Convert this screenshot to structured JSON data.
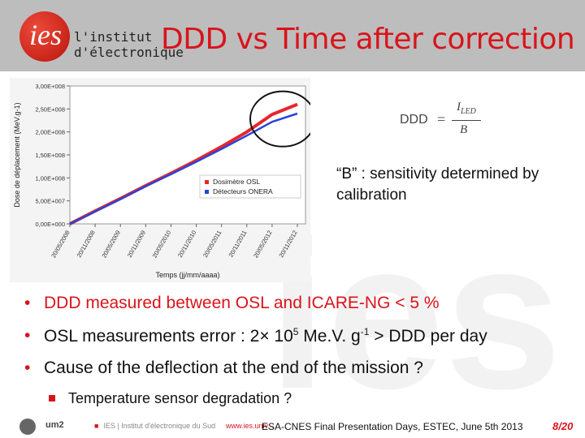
{
  "header": {
    "logo_text": "ies",
    "logo_line1": "l'institut",
    "logo_line2": "d'électronique",
    "title": "DDD vs Time after correction"
  },
  "watermark": {
    "text": "ies"
  },
  "chart_data": {
    "type": "line",
    "ylabel": "Dose de déplacement (MeV.g-1)",
    "xlabel": "Temps (jj/mm/aaaa)",
    "y_ticks": [
      "0,00E+000",
      "5,00E+007",
      "1,00E+008",
      "1,50E+008",
      "2,00E+008",
      "2,50E+008",
      "3,00E+008"
    ],
    "ylim": [
      0,
      300000000
    ],
    "x_ticks": [
      "20/05/2008",
      "20/11/2008",
      "20/05/2009",
      "20/11/2009",
      "20/05/2010",
      "20/11/2010",
      "20/05/2011",
      "20/11/2011",
      "20/05/2012",
      "20/11/2012"
    ],
    "series": [
      {
        "name": "Dosimètre OSL",
        "color": "#e8252b",
        "x": [
          0,
          1,
          2,
          3,
          4,
          5,
          6,
          7,
          8,
          9
        ],
        "values": [
          0,
          28000000,
          55000000,
          83000000,
          110000000,
          138000000,
          168000000,
          200000000,
          238000000,
          260000000
        ]
      },
      {
        "name": "Détecteurs ONERA",
        "color": "#2645d8",
        "x": [
          0,
          1,
          2,
          3,
          4,
          5,
          6,
          7,
          8,
          9
        ],
        "values": [
          0,
          27000000,
          54000000,
          82000000,
          108000000,
          135000000,
          163000000,
          192000000,
          222000000,
          240000000
        ]
      }
    ],
    "legend_position": "bottom-right",
    "annotation": "circle around the curve ends"
  },
  "formula": {
    "lhs": "DDD",
    "eq": "=",
    "numerator": "I",
    "numerator_sub": "LED",
    "denominator": "B"
  },
  "note": "“B” : sensitivity determined by calibration",
  "bullets": [
    {
      "text": "DDD measured between OSL and ICARE-NG < 5 %",
      "style": "red"
    },
    {
      "text_before": "OSL measurements error : 2× 10",
      "sup1": "5",
      "text_mid": " Me.V. g",
      "sup2": "-1",
      "text_after": " > DDD per day",
      "style": "black"
    },
    {
      "text": "Cause of the deflection at the end of the mission ?",
      "style": "black"
    }
  ],
  "subbullet": "Temperature sensor degradation ?",
  "footer": {
    "logo1": "ies",
    "logo2": "um2",
    "ies_label": "IES | Institut d'électronique du Sud",
    "url": "www.ies.univ...",
    "conference": "ESA-CNES Final Presentation Days, ESTEC, June 5th 2013",
    "page": "8/20"
  },
  "colors": {
    "accent_red": "#d8141b",
    "header_gray": "#bdbdbd",
    "osl_red": "#e8252b",
    "onera_blue": "#2645d8"
  }
}
